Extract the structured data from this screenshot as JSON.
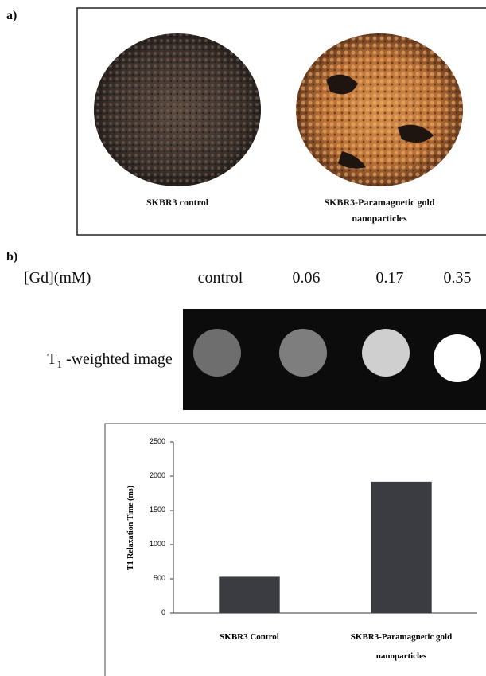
{
  "panel_a": {
    "label": "a)",
    "captions": [
      "SKBR3 control",
      "SKBR3-Paramagnetic gold nanoparticles"
    ]
  },
  "panel_b": {
    "label": "b)",
    "gd_label": "[Gd](mM)",
    "concentrations": [
      "control",
      "0.06",
      "0.17",
      "0.35"
    ],
    "image_label": {
      "main": "T",
      "sub": "1",
      "rest": "-weighted image"
    }
  },
  "chart_data": {
    "type": "bar",
    "ylabel": "T1 Relaxation Time (ms)",
    "categories": [
      "SKBR3 Control",
      "SKBR3-Paramagnetic gold nanoparticles"
    ],
    "values": [
      530,
      1920
    ],
    "color": "#3b3b42",
    "ylim": [
      0,
      2500
    ],
    "yticks": [
      0,
      500,
      1000,
      1500,
      2000,
      2500
    ],
    "grid": false
  }
}
